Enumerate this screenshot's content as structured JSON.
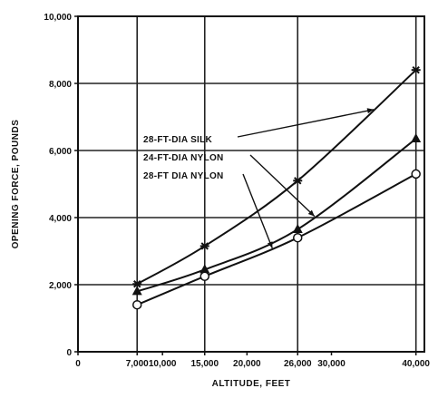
{
  "chart_data": {
    "type": "line",
    "xlabel": "ALTITUDE, FEET",
    "ylabel": "OPENING FORCE, POUNDS",
    "xlim": [
      0,
      41000
    ],
    "ylim": [
      0,
      10000
    ],
    "x_ticks": [
      {
        "value": 0,
        "label": "0"
      },
      {
        "value": 7000,
        "label": "7,000"
      },
      {
        "value": 10000,
        "label": "10,000"
      },
      {
        "value": 15000,
        "label": "15,000"
      },
      {
        "value": 20000,
        "label": "20,000"
      },
      {
        "value": 26000,
        "label": "26,000"
      },
      {
        "value": 30000,
        "label": "30,000"
      },
      {
        "value": 40000,
        "label": "40,000"
      }
    ],
    "x_gridlines": [
      7000,
      15000,
      26000,
      40000
    ],
    "y_ticks": [
      {
        "value": 0,
        "label": "0"
      },
      {
        "value": 2000,
        "label": "2,000"
      },
      {
        "value": 4000,
        "label": "4,000"
      },
      {
        "value": 6000,
        "label": "6,000"
      },
      {
        "value": 8000,
        "label": "8,000"
      },
      {
        "value": 10000,
        "label": "10,000"
      }
    ],
    "y_gridlines": [
      2000,
      4000,
      6000,
      8000
    ],
    "grid": true,
    "series": [
      {
        "name": "28-FT-DIA SILK",
        "marker": "star",
        "x": [
          7000,
          15000,
          26000,
          40000
        ],
        "y": [
          2020,
          3150,
          5100,
          8400
        ]
      },
      {
        "name": "24-FT-DIA NYLON",
        "marker": "triangle",
        "x": [
          7000,
          15000,
          26000,
          40000
        ],
        "y": [
          1800,
          2450,
          3650,
          6350
        ]
      },
      {
        "name": "28-FT DIA NYLON",
        "marker": "open-circle",
        "x": [
          7000,
          15000,
          26000,
          40000
        ],
        "y": [
          1400,
          2250,
          3400,
          5300
        ]
      }
    ]
  }
}
